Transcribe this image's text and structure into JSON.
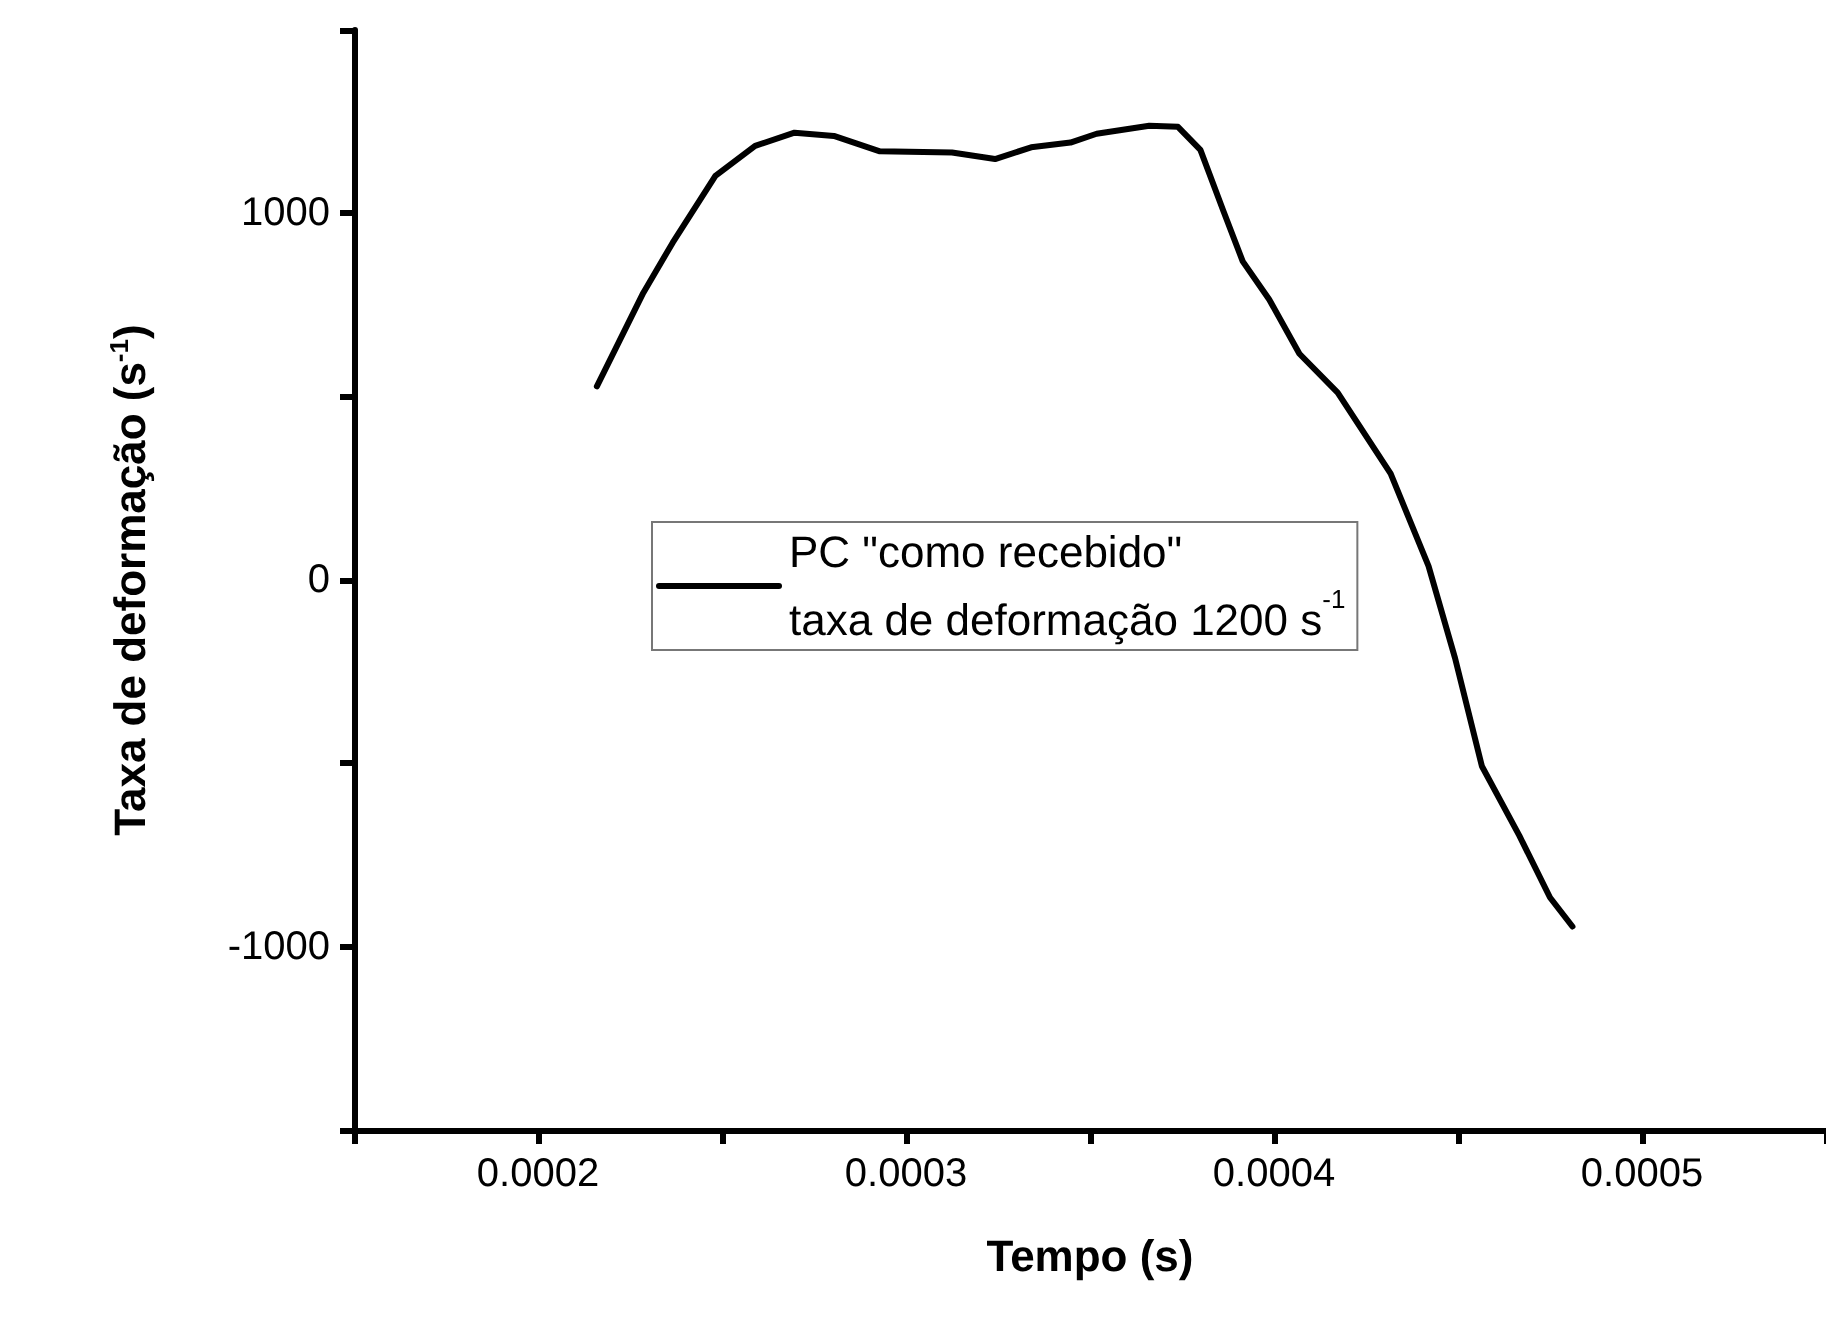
{
  "chart_data": {
    "type": "line",
    "xlabel": "Tempo (s)",
    "ylabel": "Taxa de deformação (s$^{-1}$)",
    "xlim": [
      0.00015,
      0.00055
    ],
    "xticks": [
      {
        "value": 0.00015,
        "label": null
      },
      0.0002,
      {
        "value": 0.00025,
        "label": null
      },
      0.0003,
      {
        "value": 0.00035,
        "label": null
      },
      0.0004,
      {
        "value": 0.00045,
        "label": null
      },
      0.0005,
      {
        "value": 0.00055,
        "label": null
      }
    ],
    "ylim": [
      -1500,
      1500
    ],
    "yticks": [
      {
        "value": -1500,
        "label": null
      },
      -1000,
      {
        "value": -500,
        "label": null
      },
      0,
      {
        "value": 500,
        "label": null
      },
      1000,
      {
        "value": 1500,
        "label": null
      }
    ],
    "grid": false,
    "legend": "left",
    "marker": "none",
    "line_style": "solid",
    "annotations": [
      "taxa de deformação 1200 s$^{-1}$"
    ],
    "series": [
      {
        "name": "PC \"como recebido\"",
        "color": "#000000",
        "x": [
          0.000216,
          0.0002286,
          0.0002366,
          0.0002482,
          0.000259,
          0.0002697,
          0.0002804,
          0.0002929,
          0.0003125,
          0.0003242,
          0.000334,
          0.0003447,
          0.0003518,
          0.0003661,
          0.0003739,
          0.00038,
          0.0003863,
          0.0003915,
          0.0003987,
          0.0004069,
          0.0004173,
          0.0004317,
          0.000442,
          0.0004492,
          0.0004565,
          0.0004667,
          0.000475,
          0.0004811
        ],
        "values": [
          528,
          783,
          920,
          1102,
          1184,
          1220,
          1211,
          1169,
          1166,
          1148,
          1180,
          1193,
          1217,
          1239,
          1236,
          1173,
          1005,
          869,
          765,
          617,
          511,
          290,
          38,
          -213,
          -508,
          -698,
          -866,
          -945
        ]
      }
    ]
  }
}
